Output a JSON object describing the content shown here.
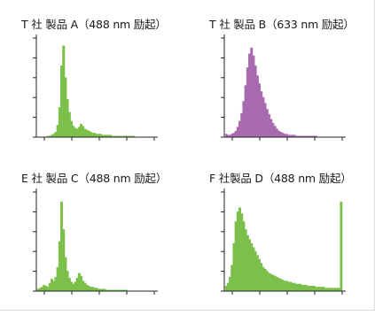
{
  "chart_data": [
    {
      "type": "area",
      "title": "T 社 製品 A（488 nm 励起）",
      "color": "#7cc04b",
      "x": [
        1,
        2,
        3,
        4,
        5,
        6,
        7,
        8,
        9,
        10,
        11,
        12,
        13,
        14,
        15,
        16,
        17,
        18,
        19,
        20,
        21,
        22,
        23,
        24,
        25,
        26,
        27,
        28,
        29,
        30,
        31,
        32,
        33,
        34,
        35,
        36,
        37,
        38,
        39,
        40,
        41,
        42,
        43,
        44,
        45,
        46,
        47,
        48,
        49,
        50,
        51,
        52,
        53,
        54,
        55,
        56,
        57,
        58,
        59,
        60
      ],
      "values": [
        0,
        0,
        0,
        0,
        0,
        1,
        1,
        2,
        3,
        5,
        12,
        30,
        72,
        92,
        60,
        38,
        25,
        16,
        11,
        9,
        8,
        10,
        13,
        11,
        8,
        7,
        6,
        5,
        4,
        4,
        3,
        3,
        3,
        2,
        2,
        2,
        2,
        2,
        1,
        1,
        1,
        1,
        1,
        1,
        1,
        1,
        1,
        1,
        1,
        1,
        0,
        0,
        0,
        0,
        0,
        0,
        0,
        0,
        0,
        0
      ],
      "ylim": [
        0,
        100
      ]
    },
    {
      "type": "area",
      "title": "T 社 製品 B（633 nm 励起）",
      "color": "#a86aae",
      "x": [
        1,
        2,
        3,
        4,
        5,
        6,
        7,
        8,
        9,
        10,
        11,
        12,
        13,
        14,
        15,
        16,
        17,
        18,
        19,
        20,
        21,
        22,
        23,
        24,
        25,
        26,
        27,
        28,
        29,
        30,
        31,
        32,
        33,
        34,
        35,
        36,
        37,
        38,
        39,
        40,
        41,
        42,
        43,
        44,
        45,
        46,
        47,
        48,
        49,
        50,
        51,
        52,
        53,
        54,
        55,
        56,
        57,
        58,
        59,
        60
      ],
      "values": [
        3,
        2,
        2,
        3,
        4,
        6,
        10,
        16,
        24,
        36,
        52,
        70,
        84,
        90,
        82,
        72,
        62,
        54,
        46,
        40,
        34,
        28,
        23,
        18,
        14,
        11,
        8,
        6,
        5,
        4,
        3,
        3,
        2,
        2,
        2,
        2,
        1,
        1,
        1,
        1,
        1,
        1,
        1,
        1,
        1,
        1,
        1,
        0,
        0,
        0,
        0,
        0,
        0,
        0,
        0,
        0,
        0,
        0,
        0,
        0
      ],
      "ylim": [
        0,
        100
      ]
    },
    {
      "type": "area",
      "title": "E 社 製品 C（488 nm 励起）",
      "color": "#7cc04b",
      "x": [
        1,
        2,
        3,
        4,
        5,
        6,
        7,
        8,
        9,
        10,
        11,
        12,
        13,
        14,
        15,
        16,
        17,
        18,
        19,
        20,
        21,
        22,
        23,
        24,
        25,
        26,
        27,
        28,
        29,
        30,
        31,
        32,
        33,
        34,
        35,
        36,
        37,
        38,
        39,
        40,
        41,
        42,
        43,
        44,
        45,
        46,
        47,
        48,
        49,
        50,
        51,
        52,
        53,
        54,
        55,
        56,
        57,
        58,
        59,
        60
      ],
      "values": [
        2,
        3,
        4,
        6,
        5,
        4,
        8,
        12,
        10,
        14,
        24,
        50,
        90,
        62,
        34,
        20,
        13,
        9,
        7,
        9,
        13,
        18,
        15,
        10,
        8,
        6,
        5,
        4,
        4,
        3,
        3,
        2,
        2,
        2,
        2,
        1,
        1,
        1,
        1,
        1,
        1,
        1,
        1,
        1,
        1,
        1,
        0,
        0,
        0,
        0,
        0,
        0,
        0,
        0,
        0,
        0,
        0,
        0,
        0,
        0
      ],
      "ylim": [
        0,
        100
      ]
    },
    {
      "type": "area",
      "title": "F 社製品 D（488 nm 励起）",
      "color": "#7cc04b",
      "x": [
        1,
        2,
        3,
        4,
        5,
        6,
        7,
        8,
        9,
        10,
        11,
        12,
        13,
        14,
        15,
        16,
        17,
        18,
        19,
        20,
        21,
        22,
        23,
        24,
        25,
        26,
        27,
        28,
        29,
        30,
        31,
        32,
        33,
        34,
        35,
        36,
        37,
        38,
        39,
        40,
        41,
        42,
        43,
        44,
        45,
        46,
        47,
        48,
        49,
        50,
        51,
        52,
        53,
        54,
        55,
        56,
        57,
        58,
        59,
        60
      ],
      "values": [
        5,
        8,
        14,
        26,
        48,
        70,
        80,
        84,
        78,
        70,
        62,
        56,
        52,
        48,
        44,
        40,
        36,
        32,
        28,
        24,
        22,
        20,
        18,
        17,
        16,
        15,
        14,
        13,
        12,
        11,
        10,
        10,
        9,
        9,
        8,
        8,
        7,
        7,
        7,
        6,
        6,
        6,
        5,
        5,
        5,
        5,
        4,
        4,
        4,
        4,
        4,
        3,
        3,
        3,
        3,
        3,
        3,
        3,
        3,
        90
      ],
      "ylim": [
        0,
        100
      ]
    }
  ]
}
